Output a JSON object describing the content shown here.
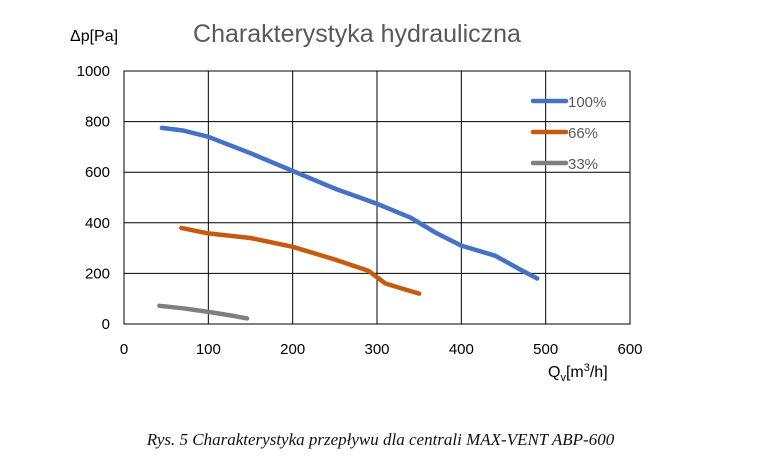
{
  "chart_data": {
    "type": "line",
    "title": "Charakterystyka hydrauliczna",
    "ylabel": "Δp[Pa]",
    "xlabel_main": "Q",
    "xlabel_sub": "v",
    "xlabel_unit_pre": "[m",
    "xlabel_unit_sup": "3",
    "xlabel_unit_post": "/h]",
    "xlim": [
      0,
      600
    ],
    "ylim": [
      0,
      1000
    ],
    "xticks": [
      "0",
      "100",
      "200",
      "300",
      "400",
      "500",
      "600"
    ],
    "yticks": [
      "0",
      "200",
      "400",
      "600",
      "800",
      "1000"
    ],
    "grid": true,
    "legend_position": "top-right",
    "series": [
      {
        "name": "100%",
        "color": "#4472c4",
        "x": [
          45,
          70,
          100,
          150,
          200,
          250,
          300,
          340,
          370,
          400,
          440,
          470,
          490
        ],
        "y": [
          775,
          765,
          740,
          675,
          605,
          535,
          475,
          420,
          360,
          310,
          270,
          215,
          180
        ]
      },
      {
        "name": "66%",
        "color": "#c55a11",
        "x": [
          68,
          100,
          150,
          200,
          250,
          290,
          310,
          330,
          350
        ],
        "y": [
          380,
          358,
          340,
          305,
          255,
          210,
          160,
          140,
          120
        ]
      },
      {
        "name": "33%",
        "color": "#7f7f7f",
        "x": [
          42,
          70,
          100,
          130,
          146
        ],
        "y": [
          72,
          62,
          48,
          32,
          22
        ]
      }
    ]
  },
  "caption": "Rys. 5 Charakterystyka przepływu dla centrali MAX-VENT ABP-600"
}
